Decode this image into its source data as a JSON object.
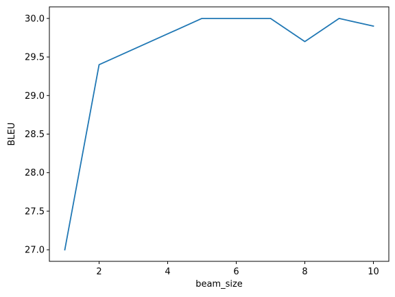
{
  "chart_data": {
    "type": "line",
    "xlabel": "beam_size",
    "ylabel": "BLEU",
    "xlim": [
      0.55,
      10.45
    ],
    "ylim": [
      26.85,
      30.15
    ],
    "x_ticks": [
      2,
      4,
      6,
      8,
      10
    ],
    "x_tick_labels": [
      "2",
      "4",
      "6",
      "8",
      "10"
    ],
    "y_ticks": [
      27.0,
      27.5,
      28.0,
      28.5,
      29.0,
      29.5,
      30.0
    ],
    "y_tick_labels": [
      "27.0",
      "27.5",
      "28.0",
      "28.5",
      "29.0",
      "29.5",
      "30.0"
    ],
    "grid": false,
    "series": [
      {
        "color": "#1f77b4",
        "x": [
          1,
          2,
          3,
          4,
          5,
          6,
          7,
          8,
          9,
          10
        ],
        "y": [
          27.0,
          29.4,
          29.6,
          29.8,
          30.0,
          30.0,
          30.0,
          29.7,
          30.0,
          29.9
        ]
      }
    ]
  }
}
